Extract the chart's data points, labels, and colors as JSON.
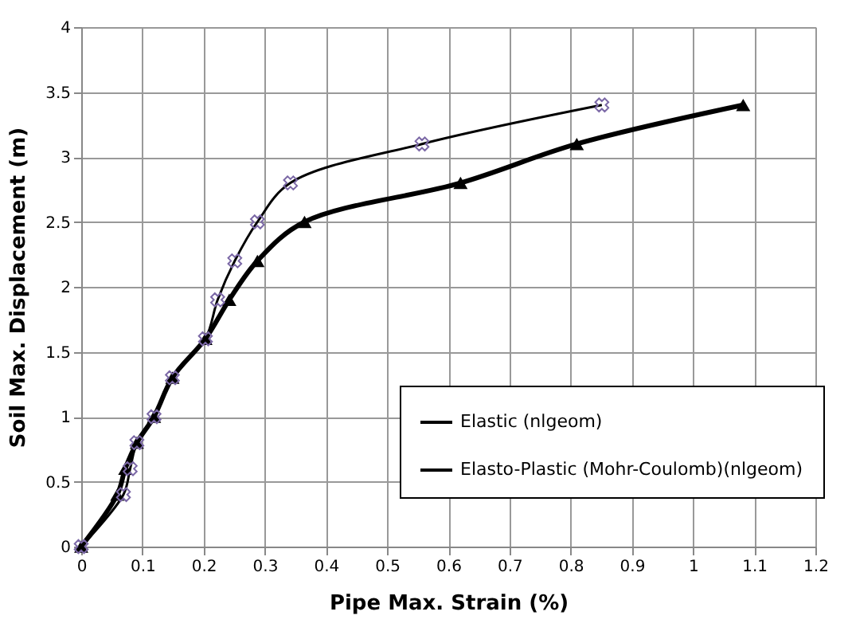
{
  "chart_data": {
    "type": "line",
    "xlabel": "Pipe Max. Strain (%)",
    "ylabel": "Soil Max. Displacement (m)",
    "xlim": [
      0,
      1.2
    ],
    "xticks": [
      0,
      0.1,
      0.2,
      0.3,
      0.4,
      0.5,
      0.6,
      0.7,
      0.8,
      0.9,
      1,
      1.1,
      1.2
    ],
    "ylim": [
      0,
      4
    ],
    "yticks": [
      0,
      0.5,
      1,
      1.5,
      2,
      2.5,
      3,
      3.5,
      4
    ],
    "grid": true,
    "legend": "bottom right",
    "series": [
      {
        "name": "Elastic (nlgeom)",
        "color": "#000000",
        "marker": "triangle",
        "x": [
          0,
          0.059,
          0.072,
          0.091,
          0.119,
          0.149,
          0.203,
          0.242,
          0.288,
          0.365,
          0.62,
          0.81,
          1.082
        ],
        "values": [
          0,
          0.4,
          0.6,
          0.8,
          1.0,
          1.3,
          1.6,
          1.9,
          2.2,
          2.5,
          2.8,
          3.1,
          3.4
        ]
      },
      {
        "name": "Elasto-Plastic (Mohr-Coulomb)(nlgeom)",
        "color": "#000000",
        "marker": "cross",
        "x": [
          0,
          0.069,
          0.08,
          0.091,
          0.119,
          0.149,
          0.203,
          0.223,
          0.251,
          0.288,
          0.342,
          0.557,
          0.851
        ],
        "values": [
          0,
          0.4,
          0.6,
          0.8,
          1.0,
          1.3,
          1.6,
          1.9,
          2.2,
          2.5,
          2.8,
          3.1,
          3.4
        ]
      }
    ]
  }
}
